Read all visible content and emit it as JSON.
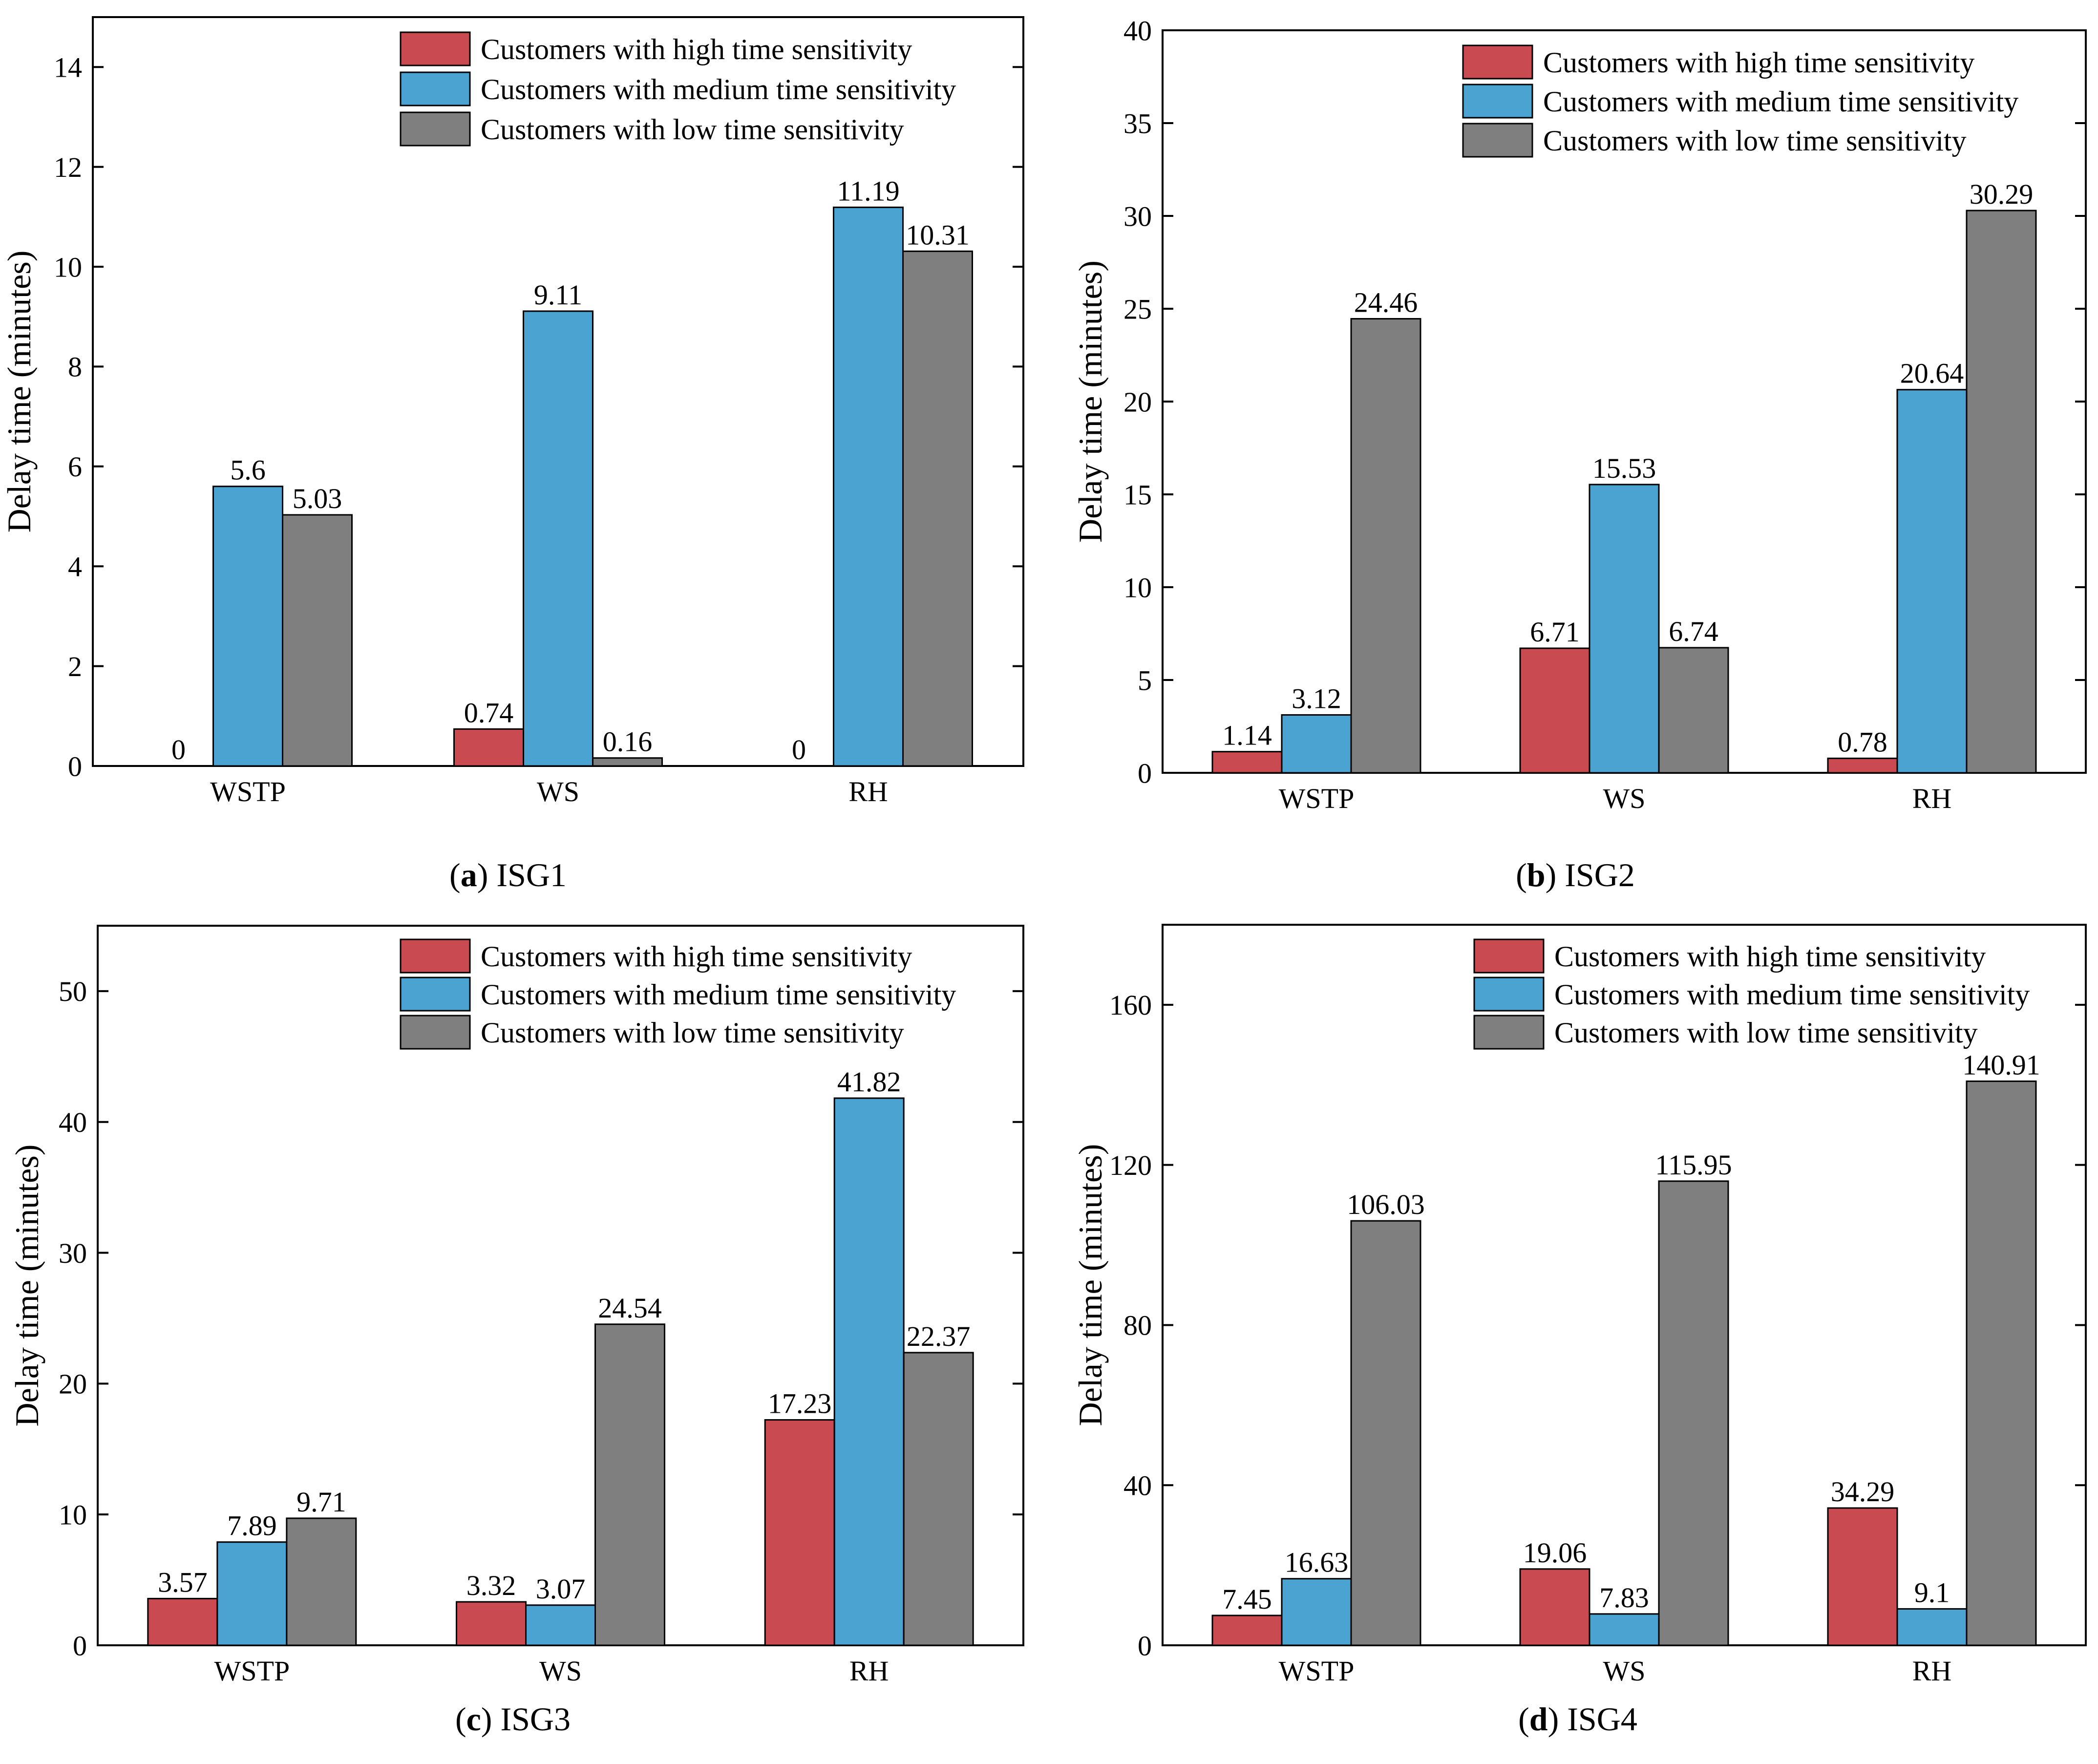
{
  "colors": {
    "high": "#c94a50",
    "medium": "#4aa3d0",
    "low": "#7f7f7f",
    "axis": "#000000"
  },
  "legend": [
    "Customers with high time sensitivity",
    "Customers with medium time sensitivity",
    "Customers with low time sensitivity"
  ],
  "chart_data": [
    {
      "type": "bar",
      "panel_letter": "a",
      "caption": "ISG1",
      "ylabel": "Delay time (minutes)",
      "categories": [
        "WSTP",
        "WS",
        "RH"
      ],
      "ylim": [
        0,
        15
      ],
      "yticks": [
        0,
        2,
        4,
        6,
        8,
        10,
        12,
        14
      ],
      "series": [
        {
          "name": "Customers with high time sensitivity",
          "values": [
            0,
            0.74,
            0
          ],
          "labels": [
            "0",
            "0.74",
            "0"
          ]
        },
        {
          "name": "Customers with medium time sensitivity",
          "values": [
            5.6,
            9.11,
            11.19
          ],
          "labels": [
            "5.6",
            "9.11",
            "11.19"
          ]
        },
        {
          "name": "Customers with low time sensitivity",
          "values": [
            5.03,
            0.16,
            10.31
          ],
          "labels": [
            "5.03",
            "0.16",
            "10.31"
          ]
        }
      ]
    },
    {
      "type": "bar",
      "panel_letter": "b",
      "caption": "ISG2",
      "ylabel": "Delay time (minutes)",
      "categories": [
        "WSTP",
        "WS",
        "RH"
      ],
      "ylim": [
        0,
        40
      ],
      "yticks": [
        0,
        5,
        10,
        15,
        20,
        25,
        30,
        35,
        40
      ],
      "series": [
        {
          "name": "Customers with high time sensitivity",
          "values": [
            1.14,
            6.71,
            0.78
          ],
          "labels": [
            "1.14",
            "6.71",
            "0.78"
          ]
        },
        {
          "name": "Customers with medium time sensitivity",
          "values": [
            3.12,
            15.53,
            20.64
          ],
          "labels": [
            "3.12",
            "15.53",
            "20.64"
          ]
        },
        {
          "name": "Customers with low time sensitivity",
          "values": [
            24.46,
            6.74,
            30.29
          ],
          "labels": [
            "24.46",
            "6.74",
            "30.29"
          ]
        }
      ]
    },
    {
      "type": "bar",
      "panel_letter": "c",
      "caption": "ISG3",
      "ylabel": "Delay time (minutes)",
      "categories": [
        "WSTP",
        "WS",
        "RH"
      ],
      "ylim": [
        0,
        55
      ],
      "yticks": [
        0,
        10,
        20,
        30,
        40,
        50
      ],
      "series": [
        {
          "name": "Customers with high time sensitivity",
          "values": [
            3.57,
            3.32,
            17.23
          ],
          "labels": [
            "3.57",
            "3.32",
            "17.23"
          ]
        },
        {
          "name": "Customers with medium time sensitivity",
          "values": [
            7.89,
            3.07,
            41.82
          ],
          "labels": [
            "7.89",
            "3.07",
            "41.82"
          ]
        },
        {
          "name": "Customers with low time sensitivity",
          "values": [
            9.71,
            24.54,
            22.37
          ],
          "labels": [
            "9.71",
            "24.54",
            "22.37"
          ]
        }
      ]
    },
    {
      "type": "bar",
      "panel_letter": "d",
      "caption": "ISG4",
      "ylabel": "Delay time (minutes)",
      "categories": [
        "WSTP",
        "WS",
        "RH"
      ],
      "ylim": [
        0,
        180
      ],
      "yticks": [
        0,
        40,
        80,
        120,
        160
      ],
      "series": [
        {
          "name": "Customers with high time sensitivity",
          "values": [
            7.45,
            19.06,
            34.29
          ],
          "labels": [
            "7.45",
            "19.06",
            "34.29"
          ]
        },
        {
          "name": "Customers with medium time sensitivity",
          "values": [
            16.63,
            7.83,
            9.1
          ],
          "labels": [
            "16.63",
            "7.83",
            "9.1"
          ]
        },
        {
          "name": "Customers with low time sensitivity",
          "values": [
            106.03,
            115.95,
            140.91
          ],
          "labels": [
            "106.03",
            "115.95",
            "140.91"
          ]
        }
      ]
    }
  ]
}
